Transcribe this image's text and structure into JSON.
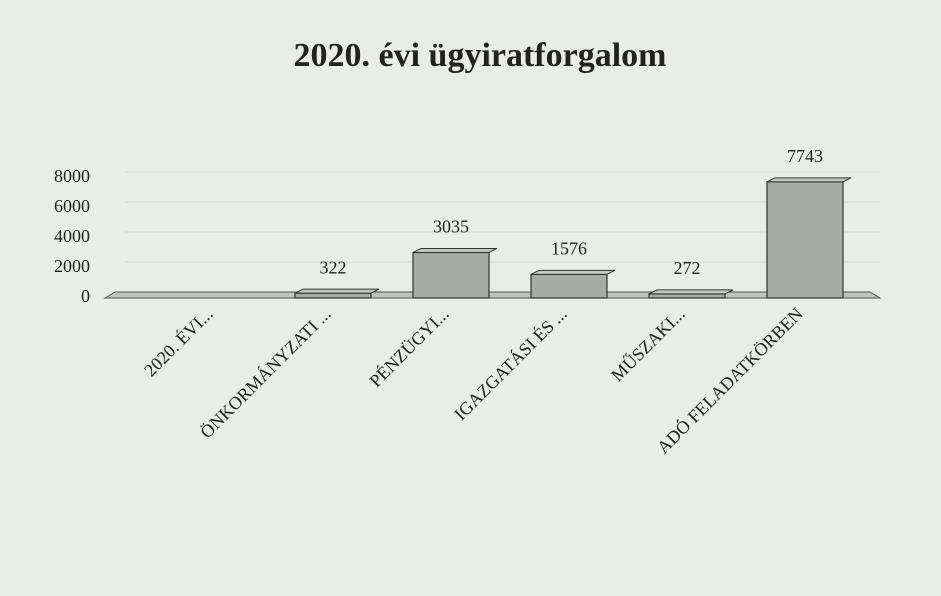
{
  "chart_data": {
    "type": "bar3d",
    "title": "2020. évi ügyiratforgalom",
    "categories": [
      "2020. ÉVI...",
      "ÖNKORMÁNYZATI ...",
      "PÉNZÜGYI...",
      "IGAZGATÁSI ÉS ...",
      "MŰSZAKI...",
      "ADÓ FELADATKÖRBEN"
    ],
    "values": [
      null,
      322,
      3035,
      1576,
      272,
      7743
    ],
    "color": "#a8aaa7",
    "ylim": [
      0,
      8000
    ],
    "yticks": [
      0,
      2000,
      4000,
      6000,
      8000
    ],
    "grid": true
  }
}
